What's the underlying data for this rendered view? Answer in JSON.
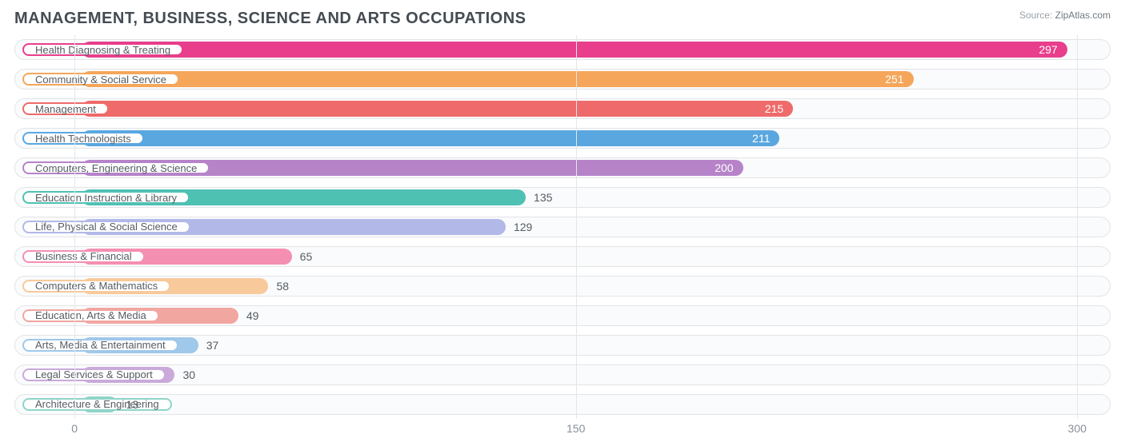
{
  "chart": {
    "type": "bar-horizontal",
    "title": "MANAGEMENT, BUSINESS, SCIENCE AND ARTS OCCUPATIONS",
    "title_fontsize": 20,
    "title_color": "#444b52",
    "source_label": "Source:",
    "source_value": "ZipAtlas.com",
    "background_color": "#ffffff",
    "track_border_color": "#e2e4e7",
    "track_fill_color": "#fafbfc",
    "grid_color": "#e4e6e9",
    "label_pill_bg": "#ffffff",
    "label_text_color": "#555c63",
    "axis_text_color": "#888f96",
    "x_axis": {
      "min": -18,
      "max": 310,
      "ticks": [
        0,
        150,
        300
      ]
    },
    "bar_origin": 2,
    "rows": [
      {
        "label": "Health Diagnosing & Treating",
        "value": 297,
        "color": "#e83e8c",
        "label_border": "#e83e8c",
        "value_inside": true
      },
      {
        "label": "Community & Social Service",
        "value": 251,
        "color": "#f5a65b",
        "label_border": "#f5a65b",
        "value_inside": true
      },
      {
        "label": "Management",
        "value": 215,
        "color": "#ef6a6a",
        "label_border": "#ef6a6a",
        "value_inside": true
      },
      {
        "label": "Health Technologists",
        "value": 211,
        "color": "#5aa7e0",
        "label_border": "#5aa7e0",
        "value_inside": true
      },
      {
        "label": "Computers, Engineering & Science",
        "value": 200,
        "color": "#b683c9",
        "label_border": "#b683c9",
        "value_inside": true
      },
      {
        "label": "Education Instruction & Library",
        "value": 135,
        "color": "#4fc1b3",
        "label_border": "#4fc1b3",
        "value_inside": false
      },
      {
        "label": "Life, Physical & Social Science",
        "value": 129,
        "color": "#b2b8e8",
        "label_border": "#b2b8e8",
        "value_inside": false
      },
      {
        "label": "Business & Financial",
        "value": 65,
        "color": "#f48fb1",
        "label_border": "#f48fb1",
        "value_inside": false
      },
      {
        "label": "Computers & Mathematics",
        "value": 58,
        "color": "#f8c99b",
        "label_border": "#f8c99b",
        "value_inside": false
      },
      {
        "label": "Education, Arts & Media",
        "value": 49,
        "color": "#f2a6a0",
        "label_border": "#f2a6a0",
        "value_inside": false
      },
      {
        "label": "Arts, Media & Entertainment",
        "value": 37,
        "color": "#9fc8ea",
        "label_border": "#9fc8ea",
        "value_inside": false
      },
      {
        "label": "Legal Services & Support",
        "value": 30,
        "color": "#caa9db",
        "label_border": "#caa9db",
        "value_inside": false
      },
      {
        "label": "Architecture & Engineering",
        "value": 13,
        "color": "#8fd4c9",
        "label_border": "#8fd4c9",
        "value_inside": false
      }
    ]
  }
}
